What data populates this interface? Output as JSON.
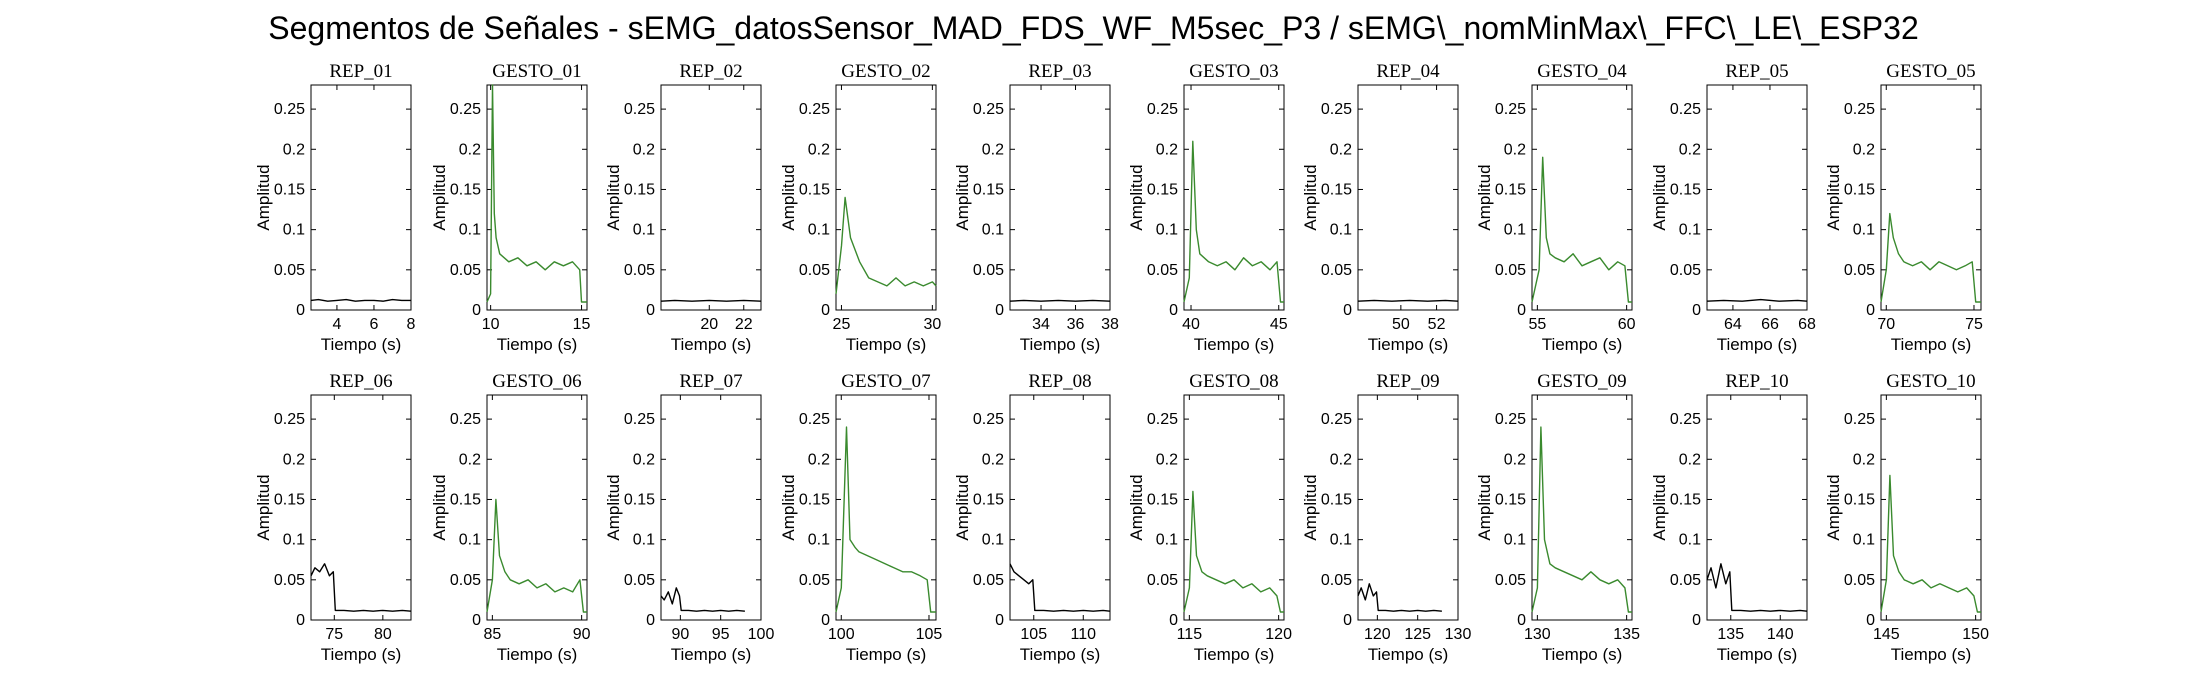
{
  "figure": {
    "title": "Segmentos de Señales - sEMG_datosSensor_MAD_FDS_WF_M5sec_P3 / sEMG\\_nomMinMax\\_FFC\\_LE\\_ESP32"
  },
  "colors": {
    "rep": "#000000",
    "gesto": "#3a8a2e",
    "axes": "#000000"
  },
  "chart_data": [
    {
      "type": "line",
      "title": "REP_01",
      "xlabel": "Tiempo (s)",
      "ylabel": "Amplitud",
      "xlim": [
        2.6,
        8
      ],
      "ylim": [
        0,
        0.28
      ],
      "xticks": [
        4,
        6,
        8
      ],
      "yticks": [
        0,
        0.05,
        0.1,
        0.15,
        0.2,
        0.25
      ],
      "series": [
        {
          "x": [
            2.6,
            3,
            3.5,
            4,
            4.5,
            5,
            5.5,
            6,
            6.5,
            7,
            7.5,
            8
          ],
          "y": [
            0.012,
            0.013,
            0.011,
            0.012,
            0.013,
            0.011,
            0.012,
            0.012,
            0.011,
            0.013,
            0.012,
            0.012
          ]
        }
      ]
    },
    {
      "type": "line",
      "title": "GESTO_01",
      "xlabel": "Tiempo (s)",
      "ylabel": "Amplitud",
      "xlim": [
        9.8,
        15.3
      ],
      "ylim": [
        0,
        0.28
      ],
      "xticks": [
        10,
        15
      ],
      "yticks": [
        0,
        0.05,
        0.1,
        0.15,
        0.2,
        0.25
      ],
      "series": [
        {
          "x": [
            9.8,
            10,
            10.1,
            10.2,
            10.3,
            10.5,
            11,
            11.5,
            12,
            12.5,
            13,
            13.5,
            14,
            14.5,
            14.9,
            15,
            15.3
          ],
          "y": [
            0.01,
            0.02,
            0.28,
            0.12,
            0.09,
            0.07,
            0.06,
            0.065,
            0.055,
            0.06,
            0.05,
            0.06,
            0.055,
            0.06,
            0.05,
            0.01,
            0.01
          ]
        }
      ]
    },
    {
      "type": "line",
      "title": "REP_02",
      "xlabel": "Tiempo (s)",
      "ylabel": "Amplitud",
      "xlim": [
        17.2,
        23
      ],
      "ylim": [
        0,
        0.28
      ],
      "xticks": [
        20,
        22
      ],
      "yticks": [
        0,
        0.05,
        0.1,
        0.15,
        0.2,
        0.25
      ],
      "series": [
        {
          "x": [
            17.2,
            18,
            19,
            20,
            21,
            22,
            23
          ],
          "y": [
            0.011,
            0.012,
            0.011,
            0.012,
            0.011,
            0.012,
            0.011
          ]
        }
      ]
    },
    {
      "type": "line",
      "title": "GESTO_02",
      "xlabel": "Tiempo (s)",
      "ylabel": "Amplitud",
      "xlim": [
        24.7,
        30.2
      ],
      "ylim": [
        0,
        0.28
      ],
      "xticks": [
        25,
        30
      ],
      "yticks": [
        0,
        0.05,
        0.1,
        0.15,
        0.2,
        0.25
      ],
      "series": [
        {
          "x": [
            24.7,
            25,
            25.2,
            25.5,
            26,
            26.5,
            27,
            27.5,
            28,
            28.5,
            29,
            29.5,
            30,
            30.2
          ],
          "y": [
            0.02,
            0.08,
            0.14,
            0.09,
            0.06,
            0.04,
            0.035,
            0.03,
            0.04,
            0.03,
            0.035,
            0.03,
            0.035,
            0.03
          ]
        }
      ]
    },
    {
      "type": "line",
      "title": "REP_03",
      "xlabel": "Tiempo (s)",
      "ylabel": "Amplitud",
      "xlim": [
        32.2,
        38
      ],
      "ylim": [
        0,
        0.28
      ],
      "xticks": [
        34,
        36,
        38
      ],
      "yticks": [
        0,
        0.05,
        0.1,
        0.15,
        0.2,
        0.25
      ],
      "series": [
        {
          "x": [
            32.2,
            33,
            34,
            35,
            36,
            37,
            38
          ],
          "y": [
            0.011,
            0.012,
            0.011,
            0.012,
            0.011,
            0.012,
            0.011
          ]
        }
      ]
    },
    {
      "type": "line",
      "title": "GESTO_03",
      "xlabel": "Tiempo (s)",
      "ylabel": "Amplitud",
      "xlim": [
        39.6,
        45.3
      ],
      "ylim": [
        0,
        0.28
      ],
      "xticks": [
        40,
        45
      ],
      "yticks": [
        0,
        0.05,
        0.1,
        0.15,
        0.2,
        0.25
      ],
      "series": [
        {
          "x": [
            39.6,
            39.9,
            40.1,
            40.3,
            40.5,
            41,
            41.5,
            42,
            42.5,
            43,
            43.5,
            44,
            44.5,
            44.9,
            45.1,
            45.3
          ],
          "y": [
            0.01,
            0.04,
            0.21,
            0.1,
            0.07,
            0.06,
            0.055,
            0.06,
            0.05,
            0.065,
            0.055,
            0.06,
            0.05,
            0.06,
            0.01,
            0.01
          ]
        }
      ]
    },
    {
      "type": "line",
      "title": "REP_04",
      "xlabel": "Tiempo (s)",
      "ylabel": "Amplitud",
      "xlim": [
        47.6,
        53.2
      ],
      "ylim": [
        0,
        0.28
      ],
      "xticks": [
        50,
        52
      ],
      "yticks": [
        0,
        0.05,
        0.1,
        0.15,
        0.2,
        0.25
      ],
      "series": [
        {
          "x": [
            47.6,
            48.5,
            49.5,
            50.5,
            51.5,
            52.5,
            53.2
          ],
          "y": [
            0.011,
            0.012,
            0.011,
            0.012,
            0.011,
            0.012,
            0.011
          ]
        }
      ]
    },
    {
      "type": "line",
      "title": "GESTO_04",
      "xlabel": "Tiempo (s)",
      "ylabel": "Amplitud",
      "xlim": [
        54.7,
        60.3
      ],
      "ylim": [
        0,
        0.28
      ],
      "xticks": [
        55,
        60
      ],
      "yticks": [
        0,
        0.05,
        0.1,
        0.15,
        0.2,
        0.25
      ],
      "series": [
        {
          "x": [
            54.7,
            55.1,
            55.3,
            55.5,
            55.7,
            56,
            56.5,
            57,
            57.5,
            58,
            58.5,
            59,
            59.5,
            59.9,
            60.1,
            60.3
          ],
          "y": [
            0.01,
            0.05,
            0.19,
            0.09,
            0.07,
            0.065,
            0.06,
            0.07,
            0.055,
            0.06,
            0.065,
            0.05,
            0.06,
            0.055,
            0.01,
            0.01
          ]
        }
      ]
    },
    {
      "type": "line",
      "title": "REP_05",
      "xlabel": "Tiempo (s)",
      "ylabel": "Amplitud",
      "xlim": [
        62.6,
        68
      ],
      "ylim": [
        0,
        0.28
      ],
      "xticks": [
        64,
        66,
        68
      ],
      "yticks": [
        0,
        0.05,
        0.1,
        0.15,
        0.2,
        0.25
      ],
      "series": [
        {
          "x": [
            62.6,
            63.5,
            64.5,
            65.5,
            66.5,
            67.5,
            68
          ],
          "y": [
            0.011,
            0.012,
            0.011,
            0.013,
            0.011,
            0.012,
            0.011
          ]
        }
      ]
    },
    {
      "type": "line",
      "title": "GESTO_05",
      "xlabel": "Tiempo (s)",
      "ylabel": "Amplitud",
      "xlim": [
        69.7,
        75.4
      ],
      "ylim": [
        0,
        0.28
      ],
      "xticks": [
        70,
        75
      ],
      "yticks": [
        0,
        0.05,
        0.1,
        0.15,
        0.2,
        0.25
      ],
      "series": [
        {
          "x": [
            69.7,
            70,
            70.2,
            70.4,
            70.7,
            71,
            71.5,
            72,
            72.5,
            73,
            73.5,
            74,
            74.5,
            74.9,
            75.1,
            75.4
          ],
          "y": [
            0.01,
            0.05,
            0.12,
            0.09,
            0.07,
            0.06,
            0.055,
            0.06,
            0.05,
            0.06,
            0.055,
            0.05,
            0.055,
            0.06,
            0.01,
            0.01
          ]
        }
      ]
    },
    {
      "type": "line",
      "title": "REP_06",
      "xlabel": "Tiempo (s)",
      "ylabel": "Amplitud",
      "xlim": [
        72.6,
        82.9
      ],
      "ylim": [
        0,
        0.28
      ],
      "xticks": [
        75,
        80
      ],
      "yticks": [
        0,
        0.05,
        0.1,
        0.15,
        0.2,
        0.25
      ],
      "series": [
        {
          "x": [
            72.6,
            73,
            73.5,
            74,
            74.5,
            74.9,
            75.1,
            76,
            77,
            78,
            79,
            80,
            81,
            82,
            82.9
          ],
          "y": [
            0.055,
            0.065,
            0.06,
            0.07,
            0.055,
            0.06,
            0.012,
            0.012,
            0.011,
            0.012,
            0.011,
            0.012,
            0.011,
            0.012,
            0.011
          ]
        }
      ]
    },
    {
      "type": "line",
      "title": "GESTO_06",
      "xlabel": "Tiempo (s)",
      "ylabel": "Amplitud",
      "xlim": [
        84.7,
        90.3
      ],
      "ylim": [
        0,
        0.28
      ],
      "xticks": [
        85,
        90
      ],
      "yticks": [
        0,
        0.05,
        0.1,
        0.15,
        0.2,
        0.25
      ],
      "series": [
        {
          "x": [
            84.7,
            85,
            85.2,
            85.4,
            85.7,
            86,
            86.5,
            87,
            87.5,
            88,
            88.5,
            89,
            89.5,
            89.9,
            90.1,
            90.3
          ],
          "y": [
            0.01,
            0.05,
            0.15,
            0.08,
            0.06,
            0.05,
            0.045,
            0.05,
            0.04,
            0.045,
            0.035,
            0.04,
            0.035,
            0.05,
            0.01,
            0.01
          ]
        }
      ]
    },
    {
      "type": "line",
      "title": "REP_07",
      "xlabel": "Tiempo (s)",
      "ylabel": "Amplitud",
      "xlim": [
        87.6,
        100
      ],
      "ylim": [
        0,
        0.28
      ],
      "xticks": [
        90,
        95,
        100
      ],
      "yticks": [
        0,
        0.05,
        0.1,
        0.15,
        0.2,
        0.25
      ],
      "series": [
        {
          "x": [
            87.6,
            88,
            88.5,
            89,
            89.5,
            89.9,
            90.1,
            91,
            92,
            93,
            94,
            95,
            96,
            97,
            98
          ],
          "y": [
            0.03,
            0.025,
            0.035,
            0.02,
            0.04,
            0.03,
            0.012,
            0.012,
            0.011,
            0.012,
            0.011,
            0.012,
            0.011,
            0.012,
            0.011
          ]
        }
      ]
    },
    {
      "type": "line",
      "title": "GESTO_07",
      "xlabel": "Tiempo (s)",
      "ylabel": "Amplitud",
      "xlim": [
        99.7,
        105.4
      ],
      "ylim": [
        0,
        0.28
      ],
      "xticks": [
        100,
        105
      ],
      "yticks": [
        0,
        0.05,
        0.1,
        0.15,
        0.2,
        0.25
      ],
      "series": [
        {
          "x": [
            99.7,
            100,
            100.3,
            100.5,
            100.8,
            101,
            101.5,
            102,
            102.5,
            103,
            103.5,
            104,
            104.5,
            104.9,
            105.1,
            105.4
          ],
          "y": [
            0.01,
            0.04,
            0.24,
            0.1,
            0.09,
            0.085,
            0.08,
            0.075,
            0.07,
            0.065,
            0.06,
            0.06,
            0.055,
            0.05,
            0.01,
            0.01
          ]
        }
      ]
    },
    {
      "type": "line",
      "title": "REP_08",
      "xlabel": "Tiempo (s)",
      "ylabel": "Amplitud",
      "xlim": [
        102.6,
        112.7
      ],
      "ylim": [
        0,
        0.28
      ],
      "xticks": [
        105,
        110
      ],
      "yticks": [
        0,
        0.05,
        0.1,
        0.15,
        0.2,
        0.25
      ],
      "series": [
        {
          "x": [
            102.6,
            103,
            103.5,
            104,
            104.5,
            104.9,
            105.1,
            106,
            107,
            108,
            109,
            110,
            111,
            112,
            112.7
          ],
          "y": [
            0.07,
            0.06,
            0.055,
            0.05,
            0.045,
            0.05,
            0.012,
            0.012,
            0.011,
            0.012,
            0.011,
            0.012,
            0.011,
            0.012,
            0.011
          ]
        }
      ]
    },
    {
      "type": "line",
      "title": "GESTO_08",
      "xlabel": "Tiempo (s)",
      "ylabel": "Amplitud",
      "xlim": [
        114.7,
        120.3
      ],
      "ylim": [
        0,
        0.28
      ],
      "xticks": [
        115,
        120
      ],
      "yticks": [
        0,
        0.05,
        0.1,
        0.15,
        0.2,
        0.25
      ],
      "series": [
        {
          "x": [
            114.7,
            115,
            115.2,
            115.4,
            115.7,
            116,
            116.5,
            117,
            117.5,
            118,
            118.5,
            119,
            119.5,
            119.9,
            120.1,
            120.3
          ],
          "y": [
            0.01,
            0.04,
            0.16,
            0.08,
            0.06,
            0.055,
            0.05,
            0.045,
            0.05,
            0.04,
            0.045,
            0.035,
            0.04,
            0.03,
            0.01,
            0.01
          ]
        }
      ]
    },
    {
      "type": "line",
      "title": "REP_09",
      "xlabel": "Tiempo (s)",
      "ylabel": "Amplitud",
      "xlim": [
        117.6,
        130
      ],
      "ylim": [
        0,
        0.28
      ],
      "xticks": [
        120,
        125,
        130
      ],
      "yticks": [
        0,
        0.05,
        0.1,
        0.15,
        0.2,
        0.25
      ],
      "series": [
        {
          "x": [
            117.6,
            118,
            118.5,
            119,
            119.5,
            119.9,
            120.1,
            121,
            122,
            123,
            124,
            125,
            126,
            127,
            128
          ],
          "y": [
            0.03,
            0.04,
            0.025,
            0.045,
            0.03,
            0.035,
            0.012,
            0.012,
            0.011,
            0.012,
            0.011,
            0.012,
            0.011,
            0.012,
            0.011
          ]
        }
      ]
    },
    {
      "type": "line",
      "title": "GESTO_09",
      "xlabel": "Tiempo (s)",
      "ylabel": "Amplitud",
      "xlim": [
        129.7,
        135.3
      ],
      "ylim": [
        0,
        0.28
      ],
      "xticks": [
        130,
        135
      ],
      "yticks": [
        0,
        0.05,
        0.1,
        0.15,
        0.2,
        0.25
      ],
      "series": [
        {
          "x": [
            129.7,
            130,
            130.2,
            130.4,
            130.7,
            131,
            131.5,
            132,
            132.5,
            133,
            133.5,
            134,
            134.5,
            134.9,
            135.1,
            135.3
          ],
          "y": [
            0.01,
            0.04,
            0.24,
            0.1,
            0.07,
            0.065,
            0.06,
            0.055,
            0.05,
            0.06,
            0.05,
            0.045,
            0.05,
            0.04,
            0.01,
            0.01
          ]
        }
      ]
    },
    {
      "type": "line",
      "title": "REP_10",
      "xlabel": "Tiempo (s)",
      "ylabel": "Amplitud",
      "xlim": [
        132.6,
        142.7
      ],
      "ylim": [
        0,
        0.28
      ],
      "xticks": [
        135,
        140
      ],
      "yticks": [
        0,
        0.05,
        0.1,
        0.15,
        0.2,
        0.25
      ],
      "series": [
        {
          "x": [
            132.6,
            133,
            133.5,
            134,
            134.5,
            134.9,
            135.1,
            136,
            137,
            138,
            139,
            140,
            141,
            142,
            142.7
          ],
          "y": [
            0.05,
            0.065,
            0.04,
            0.07,
            0.045,
            0.06,
            0.012,
            0.012,
            0.011,
            0.012,
            0.011,
            0.012,
            0.011,
            0.012,
            0.011
          ]
        }
      ]
    },
    {
      "type": "line",
      "title": "GESTO_10",
      "xlabel": "Tiempo (s)",
      "ylabel": "Amplitud",
      "xlim": [
        144.7,
        150.3
      ],
      "ylim": [
        0,
        0.28
      ],
      "xticks": [
        145,
        150
      ],
      "yticks": [
        0,
        0.05,
        0.1,
        0.15,
        0.2,
        0.25
      ],
      "series": [
        {
          "x": [
            144.7,
            145,
            145.2,
            145.4,
            145.7,
            146,
            146.5,
            147,
            147.5,
            148,
            148.5,
            149,
            149.5,
            149.9,
            150.1,
            150.3
          ],
          "y": [
            0.01,
            0.05,
            0.18,
            0.08,
            0.06,
            0.05,
            0.045,
            0.05,
            0.04,
            0.045,
            0.04,
            0.035,
            0.04,
            0.03,
            0.01,
            0.01
          ]
        }
      ]
    }
  ]
}
